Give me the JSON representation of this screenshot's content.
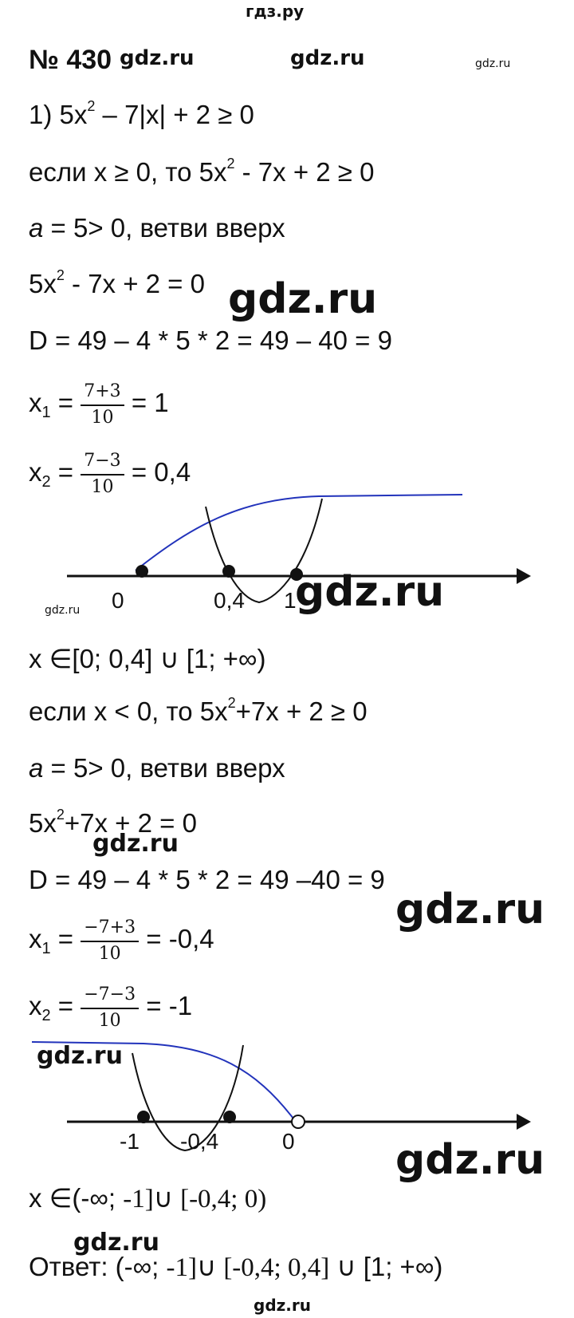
{
  "watermarks": {
    "top": "гдз.ру",
    "main": "gdz.ru"
  },
  "header": {
    "problem_number": "№ 430"
  },
  "part1": {
    "task": "1) 5x",
    "task_exp": "2",
    "task_rest": " – 7|x| + 2 ≥ 0",
    "case_pos_prefix": "если x ≥ 0, то 5x",
    "case_pos_exp": "2",
    "case_pos_rest": " - 7x + 2 ≥ 0",
    "coef_a": "a",
    "coef_rest": " = 5> 0, ветви вверх",
    "eq_prefix": "5x",
    "eq_exp": "2",
    "eq_rest": " - 7x + 2 = 0",
    "discriminant": "D = 49 – 4 * 5 * 2 = 49 – 40 = 9",
    "x1_label": "x",
    "x1_sub": "1",
    "x1_num": "7+3",
    "x1_den": "10",
    "x1_eq": " = ",
    "x1_result": "= 1",
    "x2_label": "x",
    "x2_sub": "2",
    "x2_num": "7−3",
    "x2_den": "10",
    "x2_result": "= 0,4",
    "axis_labels": [
      "0",
      "0,4",
      "1"
    ],
    "answer": "x ∈[0; 0,4] ∪ [1; +∞)"
  },
  "part2": {
    "case_neg_prefix": "если x < 0, то 5x",
    "case_neg_exp": "2",
    "case_neg_rest": "+7x + 2 ≥ 0",
    "coef_a": "a",
    "coef_rest": " = 5> 0, ветви вверх",
    "eq_prefix": "5x",
    "eq_exp": "2",
    "eq_rest": "+7x + 2 = 0",
    "discriminant": "D = 49 – 4 * 5 * 2 = 49 –40 = 9",
    "x1_label": "x",
    "x1_sub": "1",
    "x1_num": "−7+3",
    "x1_den": "10",
    "x1_result": "= -0,4",
    "x2_label": "x",
    "x2_sub": "2",
    "x2_num": "−7−3",
    "x2_den": "10",
    "x2_result": "= -1",
    "axis_labels": [
      "-1",
      "-0,4",
      "0"
    ],
    "answer_prefix": "x ∈(-∞; ",
    "answer_serif": "-1]",
    "answer_mid": "∪ ",
    "answer_serif2": "[-0,4; 0)"
  },
  "final": {
    "label": "Ответ: (-∞; ",
    "part_a": "-1]",
    "part_b": "∪ ",
    "part_c": "[-0,4; 0,4]",
    "part_d": " ∪ [1; +∞)"
  },
  "colors": {
    "curve_blue": "#2233bb",
    "ink": "#111111"
  }
}
